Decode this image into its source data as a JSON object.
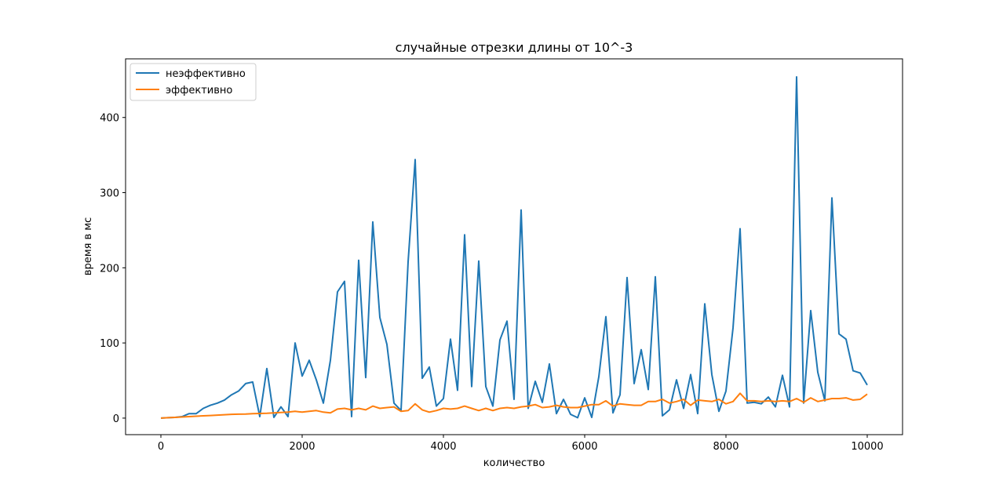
{
  "chart_data": {
    "type": "line",
    "title": "случайные отрезки длины от 10^-3",
    "xlabel": "количество",
    "ylabel": "время в мс",
    "xlim": [
      -500,
      10500
    ],
    "ylim": [
      -22,
      478
    ],
    "xticks": [
      0,
      2000,
      4000,
      6000,
      8000,
      10000
    ],
    "yticks": [
      0,
      100,
      200,
      300,
      400
    ],
    "grid": false,
    "legend": "top-left",
    "x": [
      0,
      100,
      200,
      300,
      400,
      500,
      600,
      700,
      800,
      900,
      1000,
      1100,
      1200,
      1300,
      1400,
      1500,
      1600,
      1700,
      1800,
      1900,
      2000,
      2100,
      2200,
      2300,
      2400,
      2500,
      2600,
      2700,
      2800,
      2900,
      3000,
      3100,
      3200,
      3300,
      3400,
      3500,
      3600,
      3700,
      3800,
      3900,
      4000,
      4100,
      4200,
      4300,
      4400,
      4500,
      4600,
      4700,
      4800,
      4900,
      5000,
      5100,
      5200,
      5300,
      5400,
      5500,
      5600,
      5700,
      5800,
      5900,
      6000,
      6100,
      6200,
      6300,
      6400,
      6500,
      6600,
      6700,
      6800,
      6900,
      7000,
      7100,
      7200,
      7300,
      7400,
      7500,
      7600,
      7700,
      7800,
      7900,
      8000,
      8100,
      8200,
      8300,
      8400,
      8500,
      8600,
      8700,
      8800,
      8900,
      9000,
      9100,
      9200,
      9300,
      9400,
      9500,
      9600,
      9700,
      9800,
      9900,
      10000
    ],
    "series": [
      {
        "name": "неэффективно",
        "color": "#1f77b4",
        "values": [
          0,
          0.5,
          1,
          2,
          6,
          6,
          13,
          17,
          20,
          24,
          31,
          36,
          46,
          48,
          2,
          66,
          1,
          15,
          2,
          100,
          56,
          77,
          51,
          20,
          77,
          168,
          182,
          2,
          210,
          54,
          261,
          134,
          98,
          20,
          10,
          208,
          344,
          53,
          68,
          16,
          26,
          105,
          37,
          244,
          42,
          209,
          42,
          16,
          104,
          129,
          25,
          277,
          13,
          49,
          21,
          72,
          6,
          25,
          5,
          0.5,
          27,
          1,
          55,
          135,
          7,
          31,
          187,
          46,
          91,
          38,
          188,
          3,
          11,
          51,
          13,
          58,
          6,
          152,
          58,
          9,
          36,
          120,
          252,
          20,
          21,
          19,
          28,
          15,
          57,
          15,
          454,
          20,
          143,
          61,
          23,
          293,
          112,
          105,
          63,
          60,
          44
        ]
      },
      {
        "name": "эффективно",
        "color": "#ff7f0e",
        "values": [
          0,
          0.5,
          1,
          1.5,
          2,
          2.5,
          3,
          3.5,
          4,
          4.5,
          5,
          5.2,
          5.5,
          6,
          6.2,
          6.5,
          7,
          7.5,
          8,
          9,
          8,
          9,
          10,
          8,
          7,
          12,
          13,
          11,
          13,
          11,
          16,
          13,
          14,
          15,
          9,
          10,
          19,
          11,
          8,
          10,
          13,
          12,
          13,
          16,
          13,
          10,
          13,
          10,
          13,
          14,
          13,
          15,
          16,
          18,
          14,
          15,
          17,
          15,
          14,
          14,
          16,
          18,
          18,
          23,
          16,
          19,
          18,
          17,
          17,
          22,
          22,
          25,
          20,
          22,
          25,
          17,
          24,
          23,
          22,
          25,
          19,
          22,
          33,
          23,
          23,
          22,
          23,
          22,
          23,
          22,
          26,
          21,
          27,
          22,
          24,
          26,
          26,
          27,
          24,
          25,
          32
        ]
      }
    ]
  }
}
